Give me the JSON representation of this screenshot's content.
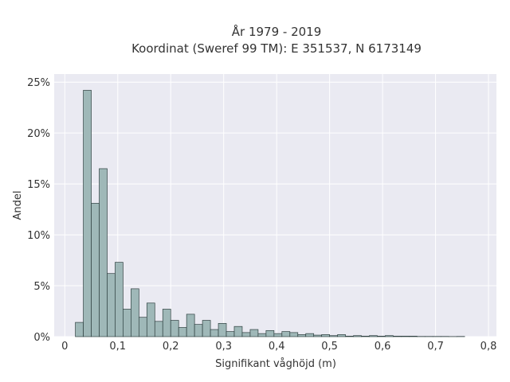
{
  "chart_data": {
    "type": "bar",
    "title": [
      "År 1979 - 2019",
      "Koordinat (Sweref 99 TM): E 351537, N 6173149"
    ],
    "xlabel": "Signifikant våghöjd (m)",
    "ylabel": "Andel",
    "xlim": [
      -0.02,
      0.815
    ],
    "ylim": [
      0,
      25.8
    ],
    "x_ticks": [
      0,
      0.1,
      0.2,
      0.3,
      0.4,
      0.5,
      0.6,
      0.7,
      0.8
    ],
    "x_tick_labels": [
      "0",
      "0,1",
      "0,2",
      "0,3",
      "0,4",
      "0,5",
      "0,6",
      "0,7",
      "0,8"
    ],
    "y_ticks": [
      0,
      5,
      10,
      15,
      20,
      25
    ],
    "y_tick_labels": [
      "0%",
      "5%",
      "10%",
      "15%",
      "20%",
      "25%"
    ],
    "grid": true,
    "bin_width": 0.015,
    "bin_start": 0.02,
    "values": [
      1.4,
      24.2,
      13.1,
      16.5,
      6.2,
      7.3,
      2.7,
      4.7,
      1.9,
      3.3,
      1.5,
      2.7,
      1.6,
      0.9,
      2.2,
      1.2,
      1.6,
      0.7,
      1.3,
      0.5,
      1.0,
      0.4,
      0.7,
      0.3,
      0.6,
      0.3,
      0.5,
      0.4,
      0.2,
      0.3,
      0.15,
      0.2,
      0.1,
      0.2,
      0.05,
      0.1,
      0.05,
      0.1,
      0.05,
      0.1,
      0.05,
      0.05,
      0.05,
      0.02,
      0.02,
      0.02,
      0.02,
      0.01,
      0.02
    ],
    "colors": {
      "bar_fill": "#9fb8b8",
      "bar_edge": "#2f4040",
      "plot_background": "#eaeaf2",
      "grid": "#ffffff",
      "text": "#333333"
    }
  }
}
